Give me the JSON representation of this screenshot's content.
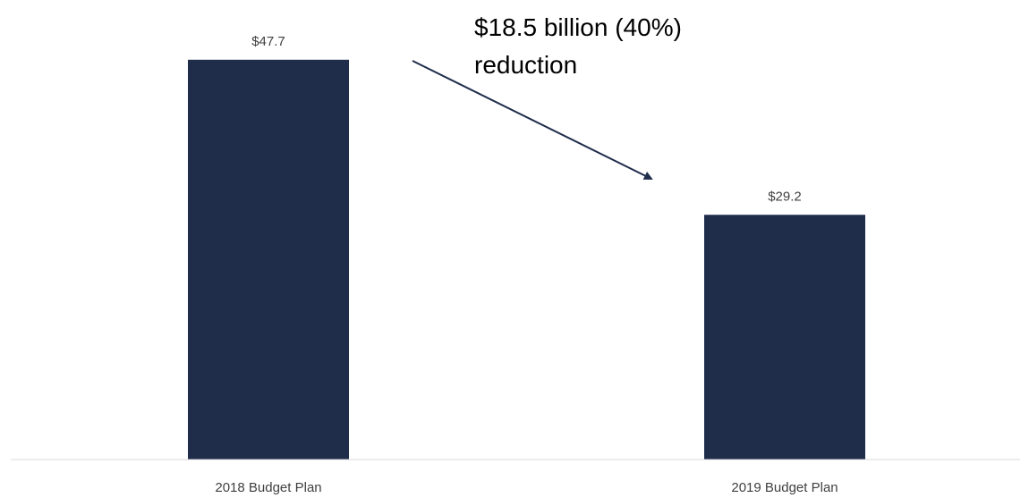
{
  "chart_data": {
    "type": "bar",
    "categories": [
      "2018 Budget Plan",
      "2019 Budget Plan"
    ],
    "values": [
      47.7,
      29.2
    ],
    "data_labels": [
      "$47.7",
      "$29.2"
    ],
    "title": "",
    "xlabel": "",
    "ylabel": "",
    "ylim": [
      0,
      50
    ],
    "grid": false,
    "legend": "none",
    "bar_color": "#1F2D4B",
    "annotation": {
      "line1": "$18.5 billion (40%)",
      "line2": "reduction",
      "arrow": "from the 2018 bar toward the 2019 bar"
    }
  }
}
